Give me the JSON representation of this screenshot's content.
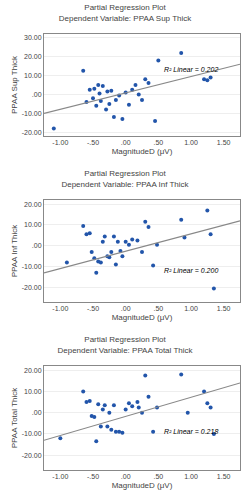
{
  "chart_data": [
    {
      "type": "scatter",
      "title": "Partial Regression Plot",
      "subtitle": "Dependent Variable: PPAA Sup Thick",
      "xlabel": "MagnitudeD (μV)",
      "ylabel": "PPAA Sup Thick",
      "annotations": [
        {
          "text": "R² Linear = 0.202",
          "x": 1.45,
          "y": 13.0
        }
      ],
      "xlim": [
        -1.25,
        1.75
      ],
      "ylim": [
        -22.0,
        32.0
      ],
      "xticks": [
        {
          "value": -1.0,
          "label": "-1.00"
        },
        {
          "value": -0.5,
          "label": "-.50"
        },
        {
          "value": 0.0,
          "label": ".00"
        },
        {
          "value": 0.5,
          "label": ".50"
        },
        {
          "value": 1.0,
          "label": "1.00"
        },
        {
          "value": 1.5,
          "label": "1.50"
        }
      ],
      "yticks": [
        {
          "value": -20.0,
          "label": "-20.00"
        },
        {
          "value": -10.0,
          "label": "-10.00"
        },
        {
          "value": 0.0,
          "label": ".00"
        },
        {
          "value": 10.0,
          "label": "10.00"
        },
        {
          "value": 20.0,
          "label": "20.00"
        },
        {
          "value": 30.0,
          "label": "30.00"
        }
      ],
      "grid": "y",
      "series": [
        {
          "type": "scatter",
          "color": "#2255aa",
          "marker": "circle",
          "x": [
            -1.1,
            -0.65,
            -0.6,
            -0.55,
            -0.5,
            -0.48,
            -0.45,
            -0.42,
            -0.4,
            -0.38,
            -0.35,
            -0.3,
            -0.28,
            -0.25,
            -0.22,
            -0.18,
            -0.15,
            -0.1,
            -0.05,
            0.0,
            0.05,
            0.1,
            0.15,
            0.2,
            0.25,
            0.3,
            0.35,
            0.45,
            0.5,
            0.85,
            1.2,
            1.25,
            1.3
          ],
          "values": [
            -18.0,
            12.5,
            -4.0,
            2.5,
            -2.0,
            3.0,
            -6.0,
            5.0,
            0.5,
            -3.5,
            4.5,
            -8.0,
            1.5,
            -5.0,
            2.0,
            -12.0,
            -3.0,
            -0.5,
            -13.0,
            1.0,
            -5.5,
            2.5,
            5.0,
            0.0,
            -3.0,
            8.0,
            6.0,
            -14.0,
            18.0,
            22.0,
            8.0,
            7.5,
            9.0
          ]
        },
        {
          "type": "line",
          "color": "#888888",
          "line_style": "solid",
          "x": [
            -1.25,
            1.75
          ],
          "values": [
            -10.0,
            16.0
          ]
        }
      ]
    },
    {
      "type": "scatter",
      "title": "Partial Regression Plot",
      "subtitle": "Dependent Variable: PPAA Inf Thick",
      "xlabel": "MagnitudeD (μV)",
      "ylabel": "PPAA Inf Thick",
      "annotations": [
        {
          "text": "R² Linear = 0.200",
          "x": 1.45,
          "y": -12.0
        }
      ],
      "xlim": [
        -1.25,
        1.75
      ],
      "ylim": [
        -27.0,
        22.0
      ],
      "xticks": [
        {
          "value": -1.0,
          "label": "-1.00"
        },
        {
          "value": -0.5,
          "label": "-.50"
        },
        {
          "value": 0.0,
          "label": ".00"
        },
        {
          "value": 0.5,
          "label": ".50"
        },
        {
          "value": 1.0,
          "label": "1.00"
        },
        {
          "value": 1.5,
          "label": "1.50"
        }
      ],
      "yticks": [
        {
          "value": -20.0,
          "label": "-20.00"
        },
        {
          "value": -10.0,
          "label": "-10.00"
        },
        {
          "value": 0.0,
          "label": ".00"
        },
        {
          "value": 10.0,
          "label": "10.00"
        },
        {
          "value": 20.0,
          "label": "20.00"
        }
      ],
      "grid": "y",
      "series": [
        {
          "type": "scatter",
          "color": "#2255aa",
          "marker": "circle",
          "x": [
            -0.9,
            -0.65,
            -0.6,
            -0.55,
            -0.52,
            -0.48,
            -0.45,
            -0.42,
            -0.38,
            -0.35,
            -0.32,
            -0.28,
            -0.25,
            -0.22,
            -0.18,
            -0.15,
            -0.12,
            -0.08,
            -0.05,
            0.0,
            0.05,
            0.1,
            0.18,
            0.25,
            0.3,
            0.35,
            0.42,
            0.48,
            0.85,
            0.9,
            1.25,
            1.3,
            1.35
          ],
          "values": [
            -8.0,
            9.5,
            5.5,
            6.0,
            -3.0,
            -6.0,
            -13.0,
            -7.5,
            -8.0,
            2.0,
            4.5,
            -5.0,
            -5.5,
            -3.0,
            4.5,
            -9.0,
            2.0,
            -2.5,
            -5.0,
            2.0,
            0.5,
            3.0,
            2.5,
            -3.0,
            11.5,
            9.0,
            -9.5,
            0.5,
            12.5,
            4.0,
            17.0,
            5.5,
            -20.5
          ]
        },
        {
          "type": "line",
          "color": "#888888",
          "line_style": "solid",
          "x": [
            -1.25,
            1.75
          ],
          "values": [
            -13.0,
            12.0
          ]
        }
      ]
    },
    {
      "type": "scatter",
      "title": "Partial Regression Plot",
      "subtitle": "Dependent Variable: PPAA Total Thick",
      "xlabel": "MagnitudeD (μV)",
      "ylabel": "PPAA Total Thick",
      "annotations": [
        {
          "text": "R² Linear = 0.218",
          "x": 1.45,
          "y": -9.0
        }
      ],
      "xlim": [
        -1.25,
        1.75
      ],
      "ylim": [
        -27.0,
        22.0
      ],
      "xticks": [
        {
          "value": -1.0,
          "label": "-1.00"
        },
        {
          "value": -0.5,
          "label": "-.50"
        },
        {
          "value": 0.0,
          "label": ".00"
        },
        {
          "value": 0.5,
          "label": ".50"
        },
        {
          "value": 1.0,
          "label": "1.00"
        },
        {
          "value": 1.5,
          "label": "1.50"
        }
      ],
      "yticks": [
        {
          "value": -20.0,
          "label": "-20.00"
        },
        {
          "value": -10.0,
          "label": "-10.00"
        },
        {
          "value": 0.0,
          "label": ".00"
        },
        {
          "value": 10.0,
          "label": "10.00"
        },
        {
          "value": 20.0,
          "label": "20.00"
        }
      ],
      "grid": "y",
      "series": [
        {
          "type": "scatter",
          "color": "#2255aa",
          "marker": "circle",
          "x": [
            -1.0,
            -0.65,
            -0.6,
            -0.55,
            -0.52,
            -0.48,
            -0.45,
            -0.42,
            -0.38,
            -0.35,
            -0.32,
            -0.28,
            -0.25,
            -0.22,
            -0.18,
            -0.15,
            -0.1,
            -0.05,
            0.0,
            0.05,
            0.1,
            0.18,
            0.2,
            0.25,
            0.3,
            0.35,
            0.42,
            0.48,
            0.85,
            0.95,
            1.2,
            1.25,
            1.3,
            1.35
          ],
          "values": [
            -12.0,
            10.0,
            5.0,
            5.5,
            -1.5,
            -2.0,
            -13.5,
            4.0,
            -6.5,
            1.5,
            3.5,
            -6.5,
            0.0,
            -8.0,
            3.5,
            -9.0,
            -9.0,
            -9.5,
            1.5,
            4.5,
            3.0,
            5.0,
            2.5,
            0.0,
            17.5,
            7.5,
            -9.0,
            2.5,
            18.0,
            0.0,
            10.0,
            4.5,
            2.5,
            -10.0
          ]
        },
        {
          "type": "line",
          "color": "#888888",
          "line_style": "solid",
          "x": [
            -1.25,
            1.75
          ],
          "values": [
            -13.0,
            14.0
          ]
        }
      ]
    }
  ]
}
